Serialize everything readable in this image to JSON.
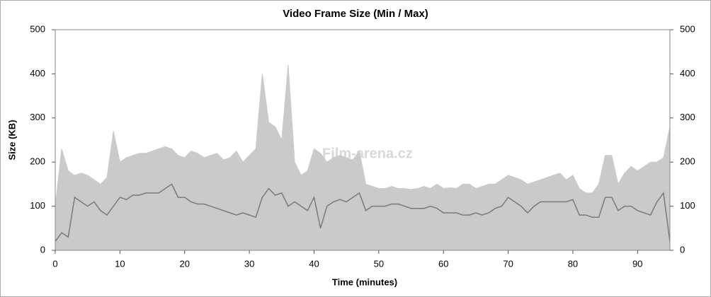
{
  "chart_data": {
    "type": "area-line",
    "title": "Video Frame Size (Min / Max)",
    "x_label": "Time (minutes)",
    "y_label": "Size (KB)",
    "watermark": "Film-arena.cz",
    "xlim": [
      0,
      95
    ],
    "xticks": [
      0,
      10,
      20,
      30,
      40,
      50,
      60,
      70,
      80,
      90
    ],
    "ylim": [
      0,
      500
    ],
    "yticks": [
      0,
      100,
      200,
      300,
      400,
      500
    ],
    "y2lim": [
      0,
      500
    ],
    "y2ticks": [
      0,
      100,
      200,
      300,
      400,
      500
    ],
    "x": [
      0,
      1,
      2,
      3,
      4,
      5,
      6,
      7,
      8,
      9,
      10,
      11,
      12,
      13,
      14,
      15,
      16,
      17,
      18,
      19,
      20,
      21,
      22,
      23,
      24,
      25,
      26,
      27,
      28,
      29,
      30,
      31,
      32,
      33,
      34,
      35,
      36,
      37,
      38,
      39,
      40,
      41,
      42,
      43,
      44,
      45,
      46,
      47,
      48,
      49,
      50,
      51,
      52,
      53,
      54,
      55,
      56,
      57,
      58,
      59,
      60,
      61,
      62,
      63,
      64,
      65,
      66,
      67,
      68,
      69,
      70,
      71,
      72,
      73,
      74,
      75,
      76,
      77,
      78,
      79,
      80,
      81,
      82,
      83,
      84,
      85,
      86,
      87,
      88,
      89,
      90,
      91,
      92,
      93,
      94,
      95
    ],
    "series": [
      {
        "color": "#cacaca",
        "values": [
          100,
          230,
          180,
          170,
          175,
          170,
          160,
          150,
          165,
          270,
          200,
          210,
          215,
          220,
          220,
          225,
          230,
          235,
          230,
          215,
          210,
          225,
          220,
          210,
          215,
          220,
          205,
          210,
          225,
          200,
          215,
          230,
          400,
          290,
          280,
          250,
          420,
          200,
          170,
          180,
          230,
          220,
          200,
          210,
          215,
          210,
          205,
          225,
          150,
          145,
          140,
          140,
          145,
          140,
          140,
          138,
          140,
          145,
          140,
          150,
          140,
          142,
          140,
          150,
          150,
          140,
          145,
          150,
          150,
          160,
          170,
          165,
          160,
          150,
          155,
          160,
          165,
          170,
          175,
          160,
          170,
          140,
          130,
          130,
          150,
          215,
          215,
          150,
          175,
          190,
          180,
          190,
          200,
          200,
          210,
          280
        ]
      },
      {
        "color": "#7a7a7a",
        "values": [
          20,
          40,
          30,
          120,
          110,
          100,
          110,
          90,
          80,
          100,
          120,
          115,
          125,
          125,
          130,
          130,
          130,
          140,
          150,
          120,
          120,
          110,
          105,
          105,
          100,
          95,
          90,
          85,
          80,
          85,
          80,
          75,
          120,
          140,
          125,
          130,
          100,
          110,
          100,
          90,
          120,
          50,
          100,
          110,
          115,
          110,
          120,
          130,
          90,
          100,
          100,
          100,
          105,
          105,
          100,
          95,
          95,
          95,
          100,
          95,
          85,
          85,
          85,
          80,
          80,
          85,
          80,
          85,
          95,
          100,
          120,
          110,
          100,
          85,
          100,
          110,
          110,
          110,
          110,
          110,
          115,
          80,
          80,
          75,
          75,
          120,
          120,
          90,
          100,
          100,
          90,
          85,
          80,
          110,
          130,
          20
        ]
      }
    ]
  }
}
